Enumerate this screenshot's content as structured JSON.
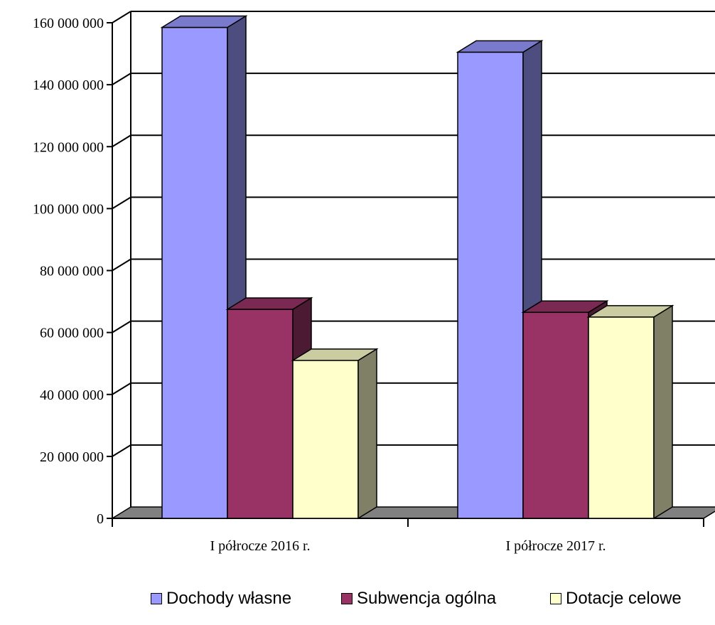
{
  "chart_data": {
    "type": "bar",
    "categories": [
      "I półrocze 2016 r.",
      "I półrocze 2017 r."
    ],
    "series": [
      {
        "name": "Dochody własne",
        "values": [
          158500000,
          150500000
        ],
        "color": "#9999FF",
        "side_color": "#4D4D80",
        "top_color": "#7A7ACC"
      },
      {
        "name": "Subwencja ogólna",
        "values": [
          67500000,
          66500000
        ],
        "color": "#993366",
        "side_color": "#4D1A33",
        "top_color": "#7A2952"
      },
      {
        "name": "Dotacje celowe",
        "values": [
          51000000,
          65000000
        ],
        "color": "#FFFFCC",
        "side_color": "#808066",
        "top_color": "#CCCCA3"
      }
    ],
    "y_tick_labels": [
      "0",
      "20 000 000",
      "40 000 000",
      "60 000 000",
      "80 000 000",
      "100 000 000",
      "120 000 000",
      "140 000 000",
      "160 000 000"
    ],
    "ylim": [
      0,
      160000000
    ],
    "grid": true,
    "legend_position": "bottom",
    "style": "3d-clustered-column"
  }
}
